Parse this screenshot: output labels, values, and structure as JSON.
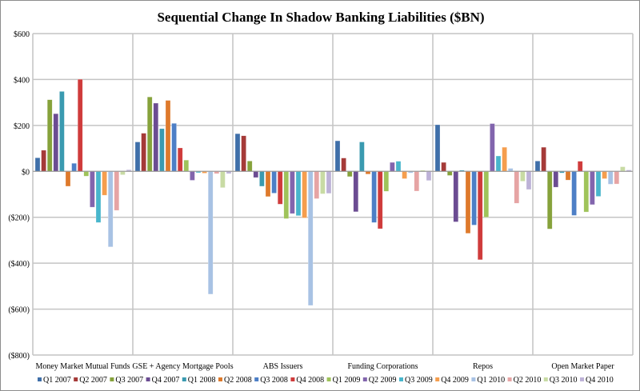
{
  "chart_data": {
    "type": "bar",
    "title": "Sequential Change In Shadow Banking Liabilities ($BN)",
    "xlabel": "",
    "ylabel": "",
    "ylim": [
      -800,
      600
    ],
    "yticks": [
      600,
      400,
      200,
      0,
      -200,
      -400,
      -600,
      -800
    ],
    "ytick_labels": [
      "$600",
      "$400",
      "$200",
      "$0",
      "($200)",
      "($400)",
      "($600)",
      "($800)"
    ],
    "grid": true,
    "legend_position": "bottom",
    "categories": [
      "Money Market Mutual Funds",
      "GSE + Agency Mortgage Pools",
      "ABS Issuers",
      "Funding Corporations",
      "Repos",
      "Open Market Paper"
    ],
    "series": [
      {
        "name": "Q1 2007",
        "color": "#3f6fa9",
        "values": [
          59,
          128,
          164,
          133,
          203,
          45
        ]
      },
      {
        "name": "Q2 2007",
        "color": "#a53a38",
        "values": [
          92,
          166,
          155,
          58,
          39,
          105
        ]
      },
      {
        "name": "Q3 2007",
        "color": "#86a23b",
        "values": [
          312,
          324,
          45,
          -23,
          -18,
          -251
        ]
      },
      {
        "name": "Q4 2007",
        "color": "#6b4c92",
        "values": [
          251,
          297,
          -27,
          -176,
          -220,
          -69
        ]
      },
      {
        "name": "Q1 2008",
        "color": "#3a9ab0",
        "values": [
          348,
          186,
          -65,
          128,
          5,
          -7
        ]
      },
      {
        "name": "Q2 2008",
        "color": "#de7a2b",
        "values": [
          -65,
          309,
          -110,
          -12,
          -270,
          -38
        ]
      },
      {
        "name": "Q3 2008",
        "color": "#4d7fc6",
        "values": [
          35,
          209,
          -95,
          -223,
          -234,
          -192
        ]
      },
      {
        "name": "Q4 2008",
        "color": "#cf3b3b",
        "values": [
          401,
          102,
          -143,
          -250,
          -385,
          44
        ]
      },
      {
        "name": "Q1 2009",
        "color": "#9fc35a",
        "values": [
          -21,
          49,
          -206,
          -87,
          -200,
          -177
        ]
      },
      {
        "name": "Q2 2009",
        "color": "#8265ad",
        "values": [
          -156,
          -39,
          -184,
          39,
          208,
          -145
        ]
      },
      {
        "name": "Q3 2009",
        "color": "#48b6cc",
        "values": [
          -223,
          -6,
          -193,
          44,
          67,
          -109
        ]
      },
      {
        "name": "Q4 2009",
        "color": "#f59e4e",
        "values": [
          -104,
          -8,
          -203,
          -32,
          105,
          -32
        ]
      },
      {
        "name": "Q1 2010",
        "color": "#a8c2e4",
        "values": [
          -329,
          -535,
          -584,
          -7,
          13,
          -56
        ]
      },
      {
        "name": "Q2 2010",
        "color": "#e6a4a4",
        "values": [
          -170,
          -10,
          -119,
          -86,
          -139,
          -55
        ]
      },
      {
        "name": "Q3 2010",
        "color": "#c8dba4",
        "values": [
          -15,
          -71,
          -98,
          5,
          -43,
          20
        ]
      },
      {
        "name": "Q4 2010",
        "color": "#bdb2d7",
        "values": [
          7,
          -10,
          -96,
          -40,
          -79,
          6
        ]
      }
    ]
  }
}
